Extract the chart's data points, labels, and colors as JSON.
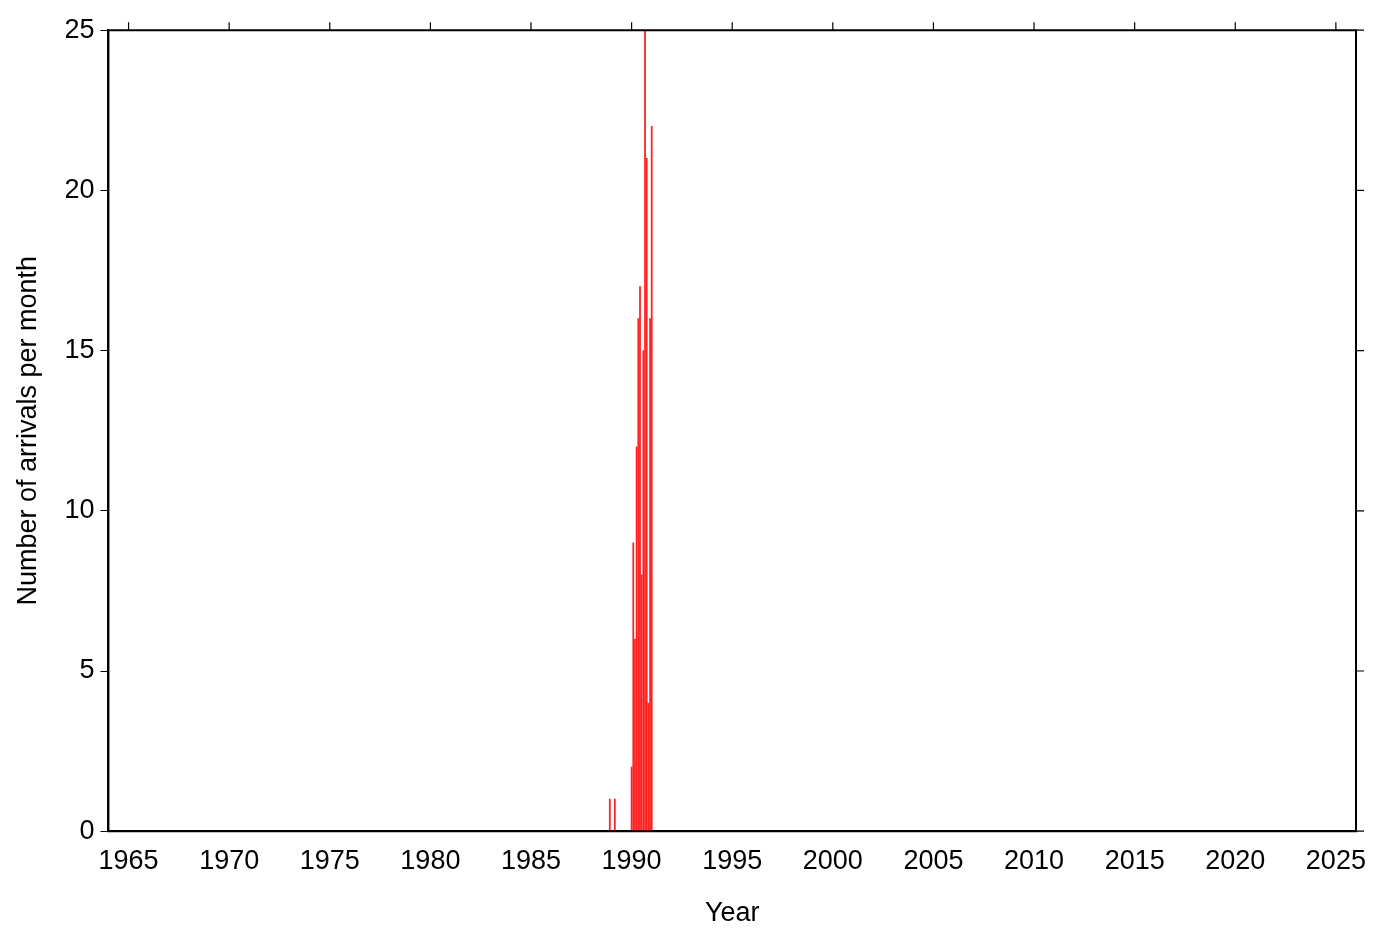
{
  "chart_data": {
    "type": "bar",
    "xlabel": "Year",
    "ylabel": "Number of arrivals per month",
    "x": [
      "1988-12",
      "1989-03",
      "1990-01",
      "1990-02",
      "1990-03",
      "1990-04",
      "1990-05",
      "1990-06",
      "1990-07",
      "1990-08",
      "1990-09",
      "1990-10",
      "1990-11",
      "1990-12",
      "1991-01"
    ],
    "values": [
      1,
      1,
      2,
      9,
      6,
      12,
      16,
      17,
      8,
      15,
      25,
      21,
      4,
      16,
      22
    ],
    "color": "#ff2020",
    "xlim": [
      "1964-01",
      "2026-01"
    ],
    "xticks": [
      "1965",
      "1970",
      "1975",
      "1980",
      "1985",
      "1990",
      "1995",
      "2000",
      "2005",
      "2010",
      "2015",
      "2020",
      "2025"
    ],
    "ylim": [
      0,
      25
    ],
    "yticks": [
      0,
      5,
      10,
      15,
      20,
      25
    ],
    "legend": false
  }
}
